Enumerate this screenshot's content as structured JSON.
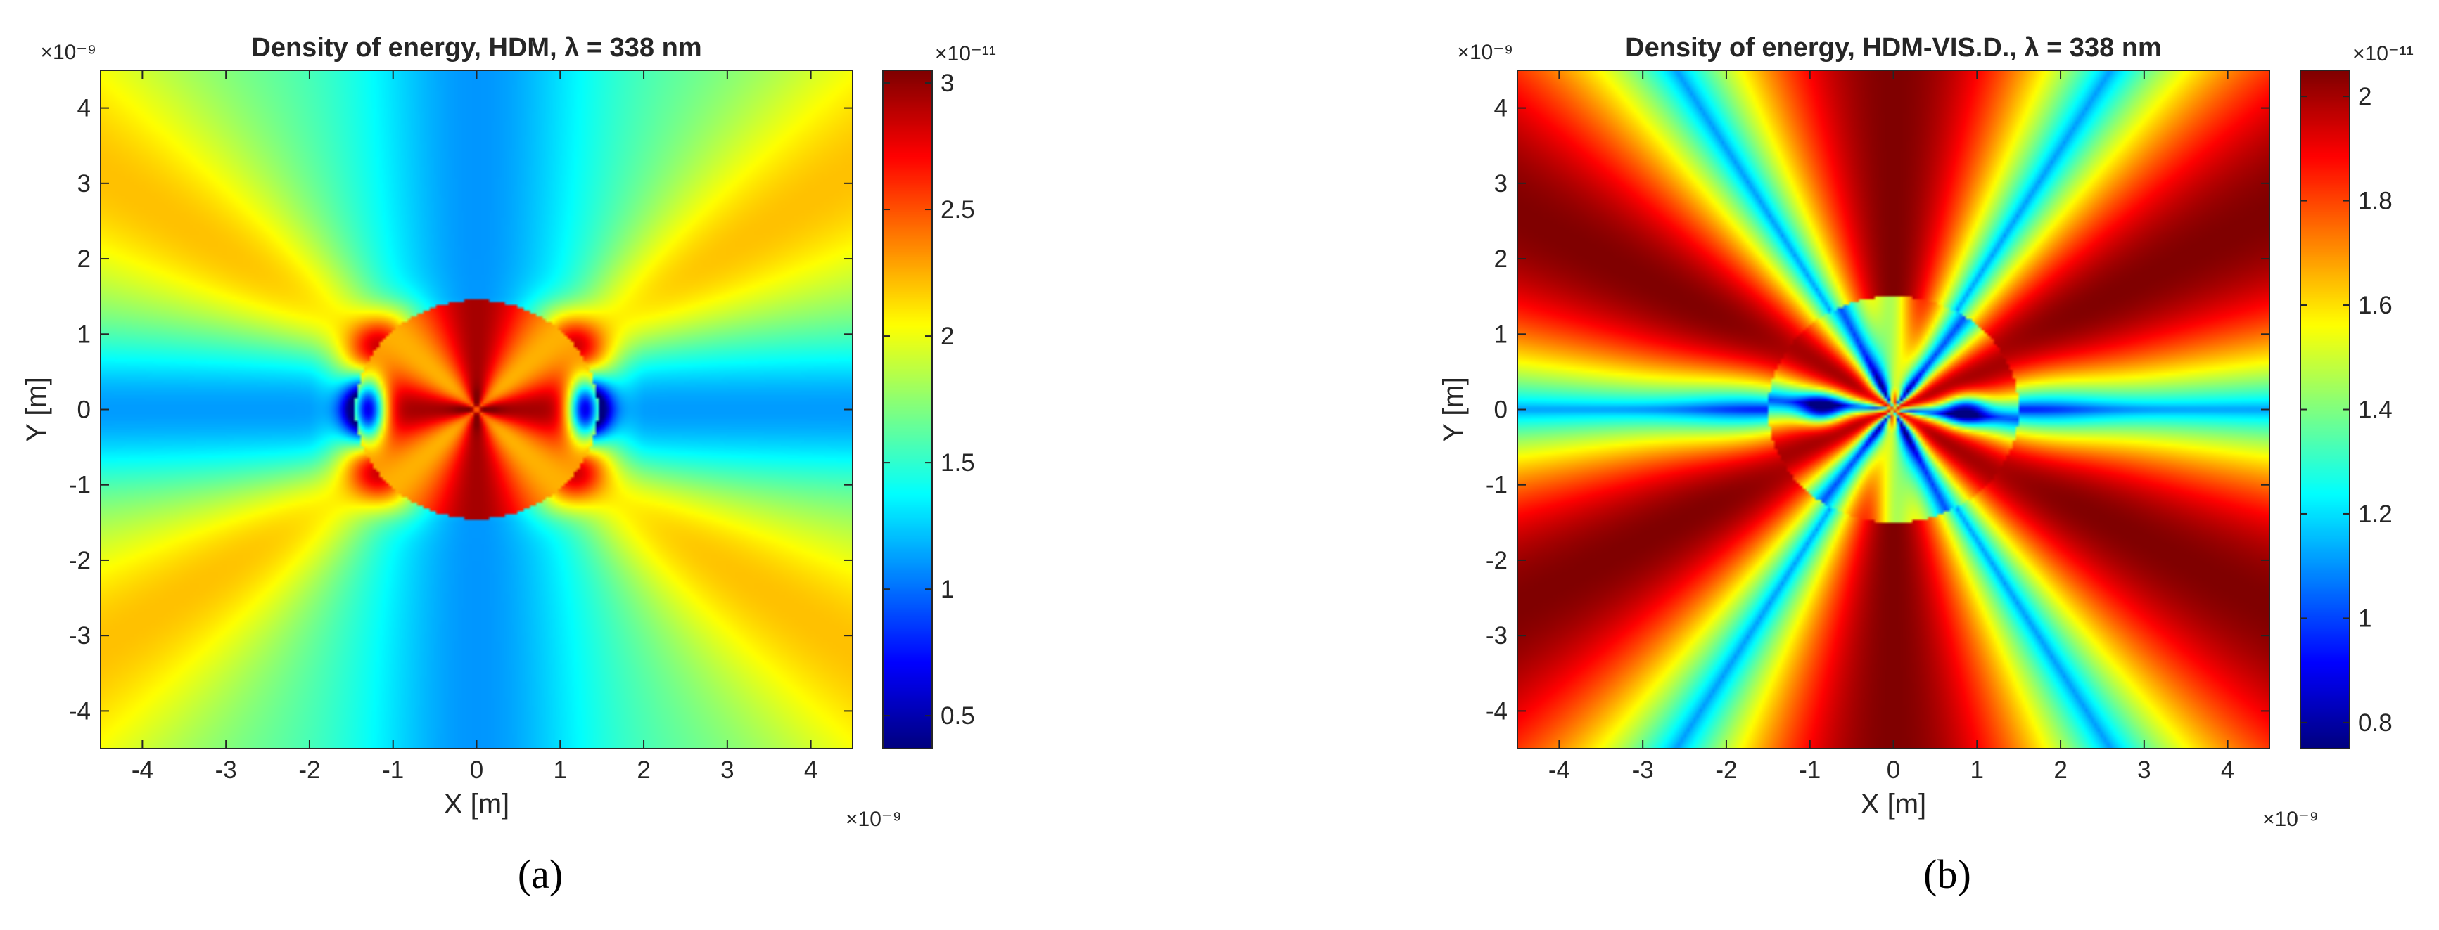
{
  "chart_data": [
    {
      "type": "heatmap",
      "panel_id": "a",
      "title": "Density of energy, HDM, λ = 338 nm",
      "xlabel": "X [m]",
      "ylabel": "Y [m]",
      "xlim": [
        -4.5e-09,
        4.5e-09
      ],
      "ylim": [
        -4.5e-09,
        4.5e-09
      ],
      "xticks": [
        -4,
        -3,
        -2,
        -1,
        0,
        1,
        2,
        3,
        4
      ],
      "yticks": [
        -4,
        -3,
        -2,
        -1,
        0,
        1,
        2,
        3,
        4
      ],
      "x_multiplier": "×10⁻⁹",
      "y_multiplier": "×10⁻⁹",
      "colormap": "jet",
      "colorbar": {
        "multiplier": "×10⁻¹¹",
        "range": [
          0.37,
          3.05
        ],
        "ticks": [
          0.5,
          1,
          1.5,
          2,
          2.5,
          3
        ]
      },
      "field": {
        "shape": "hdm",
        "particle_radius": 1.45,
        "far_field_min": 1.05,
        "far_field_max": 2.15,
        "lobe_angle_deg": 35
      },
      "caption": "(a)"
    },
    {
      "type": "heatmap",
      "panel_id": "b",
      "title": "Density of energy, HDM-VIS.D., λ = 338 nm",
      "xlabel": "X [m]",
      "ylabel": "Y [m]",
      "xlim": [
        -4.5e-09,
        4.5e-09
      ],
      "ylim": [
        -4.5e-09,
        4.5e-09
      ],
      "xticks": [
        -4,
        -3,
        -2,
        -1,
        0,
        1,
        2,
        3,
        4
      ],
      "yticks": [
        -4,
        -3,
        -2,
        -1,
        0,
        1,
        2,
        3,
        4
      ],
      "x_multiplier": "×10⁻⁹",
      "y_multiplier": "×10⁻⁹",
      "colormap": "jet",
      "colorbar": {
        "multiplier": "×10⁻¹¹",
        "range": [
          0.75,
          2.05
        ],
        "ticks": [
          0.8,
          1,
          1.2,
          1.4,
          1.6,
          1.8,
          2
        ]
      },
      "field": {
        "shape": "vis",
        "particle_radius": 1.5,
        "far_field_min": 1.05,
        "far_field_max": 2.02,
        "lobe_count": 6
      },
      "caption": "(b)"
    }
  ]
}
